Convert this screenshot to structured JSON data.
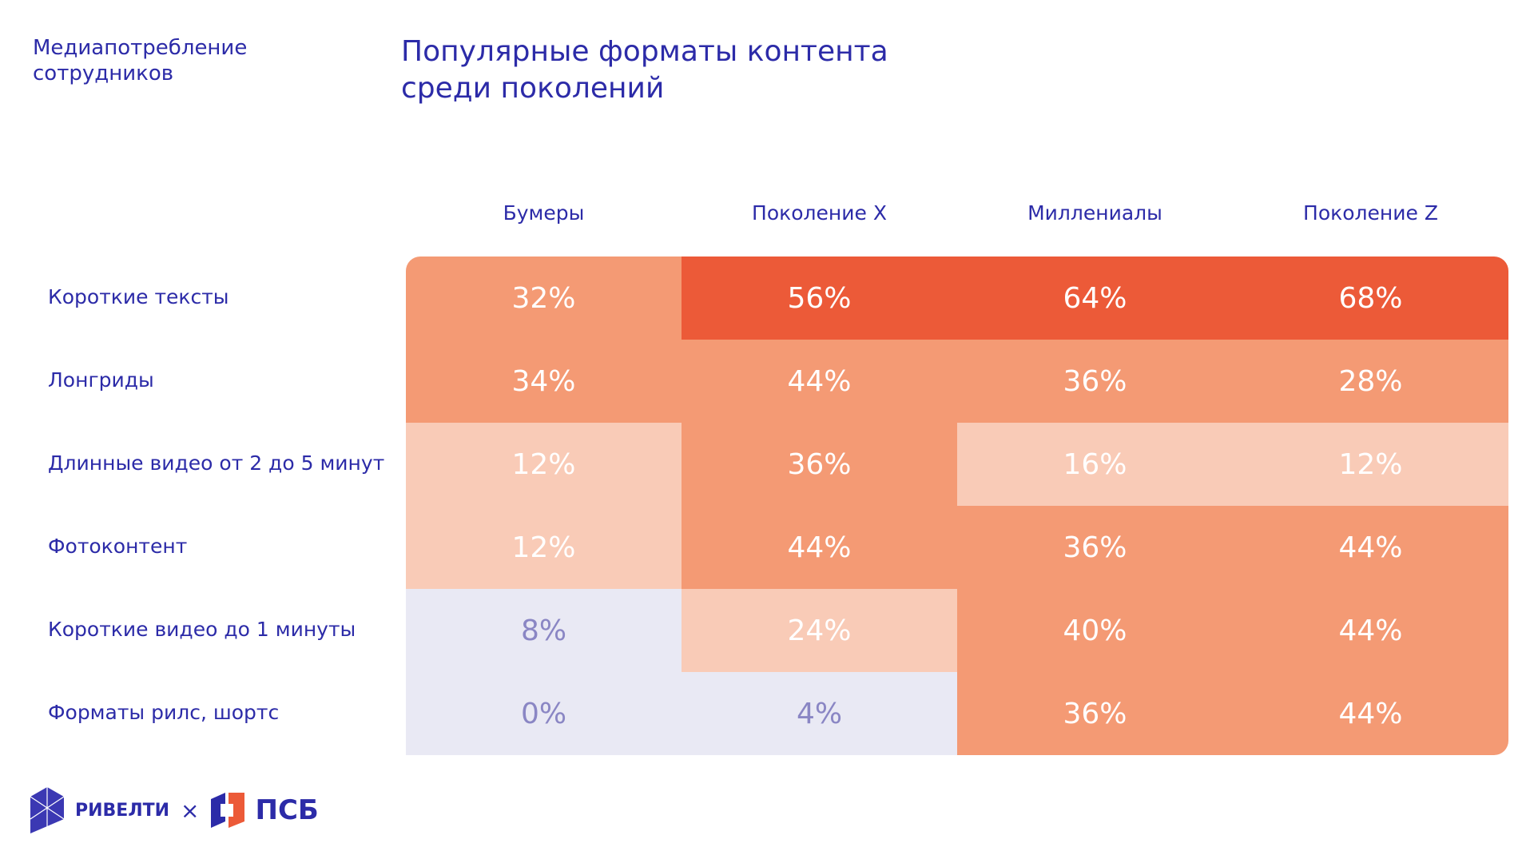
{
  "section_label": "Медиапотребление сотрудников",
  "logos": [
    "РИВЕЛТИ",
    "ПСБ"
  ],
  "chart_data": {
    "type": "heatmap",
    "title": "Популярные форматы контента среди поколений",
    "categories": [
      "Бумеры",
      "Поколение X",
      "Миллениалы",
      "Поколение Z"
    ],
    "series": [
      {
        "name": "Короткие тексты",
        "values": [
          32,
          56,
          64,
          68
        ],
        "value_labels": [
          "32%",
          "56%",
          "64%",
          "68%"
        ],
        "colors": [
          "#f49a74",
          "#ec5a38",
          "#ec5a38",
          "#ec5a38"
        ]
      },
      {
        "name": "Лонгриды",
        "values": [
          34,
          44,
          36,
          28
        ],
        "value_labels": [
          "34%",
          "44%",
          "36%",
          "28%"
        ],
        "colors": [
          "#f49a74",
          "#f49a74",
          "#f49a74",
          "#f49a74"
        ]
      },
      {
        "name": "Длинные видео от 2 до 5 минут",
        "values": [
          12,
          36,
          16,
          12
        ],
        "value_labels": [
          "12%",
          "36%",
          "16%",
          "12%"
        ],
        "colors": [
          "#f9cbb7",
          "#f49a74",
          "#f9cbb7",
          "#f9cbb7"
        ]
      },
      {
        "name": "Фотоконтент",
        "values": [
          12,
          44,
          36,
          44
        ],
        "value_labels": [
          "12%",
          "44%",
          "36%",
          "44%"
        ],
        "colors": [
          "#f9cbb7",
          "#f49a74",
          "#f49a74",
          "#f49a74"
        ]
      },
      {
        "name": "Короткие видео до 1 минуты",
        "values": [
          8,
          24,
          40,
          44
        ],
        "value_labels": [
          "8%",
          "24%",
          "40%",
          "44%"
        ],
        "colors": [
          "#e9e9f4",
          "#f9cbb7",
          "#f49a74",
          "#f49a74"
        ]
      },
      {
        "name": "Форматы рилс, шортс",
        "values": [
          0,
          4,
          36,
          44
        ],
        "value_labels": [
          "0%",
          "4%",
          "36%",
          "44%"
        ],
        "colors": [
          "#e9e9f4",
          "#e9e9f4",
          "#f49a74",
          "#f49a74"
        ]
      }
    ]
  }
}
